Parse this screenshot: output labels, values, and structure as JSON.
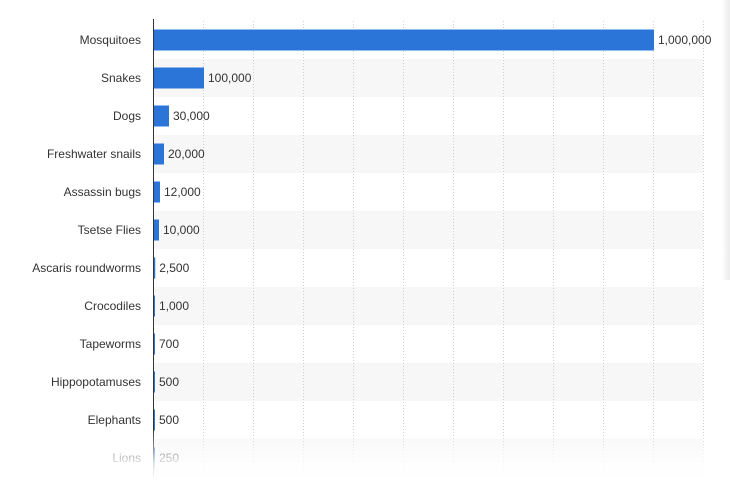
{
  "chart_data": {
    "type": "bar",
    "orientation": "horizontal",
    "title": "",
    "xlabel": "",
    "ylabel": "",
    "xlim": [
      0,
      1100000
    ],
    "grid": true,
    "legend": "none",
    "bar_color": "#2b74d8",
    "categories": [
      "Mosquitoes",
      "Snakes",
      "Dogs",
      "Freshwater snails",
      "Assassin bugs",
      "Tsetse Flies",
      "Ascaris roundworms",
      "Crocodiles",
      "Tapeworms",
      "Hippopotamuses",
      "Elephants",
      "Lions"
    ],
    "values": [
      1000000,
      100000,
      30000,
      20000,
      12000,
      10000,
      2500,
      1000,
      700,
      500,
      500,
      250
    ],
    "value_labels": [
      "1,000,000",
      "100,000",
      "30,000",
      "20,000",
      "12,000",
      "10,000",
      "2,500",
      "1,000",
      "700",
      "500",
      "500",
      "250"
    ]
  }
}
